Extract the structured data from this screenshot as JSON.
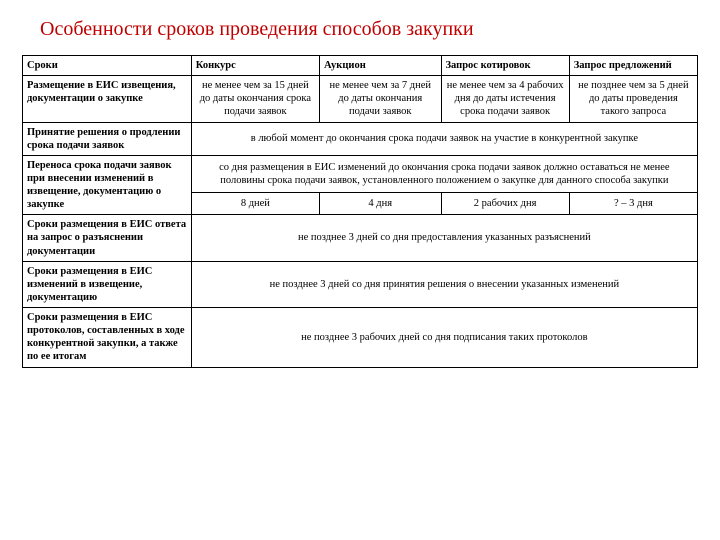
{
  "title": "Особенности сроков проведения способов закупки",
  "headers": {
    "c0": "Сроки",
    "c1": "Конкурс",
    "c2": "Аукцион",
    "c3": "Запрос котировок",
    "c4": "Запрос предложений"
  },
  "row1": {
    "label": "Размещение в ЕИС извещения, документации о закупке",
    "c1": "не менее чем за 15 дней до даты окончания срока подачи заявок",
    "c2": "не менее чем за 7 дней до даты окончания подачи заявок",
    "c3": "не менее чем за 4 рабочих дня до даты истечения срока подачи заявок",
    "c4": "не позднее чем за 5 дней до даты проведения такого запроса"
  },
  "row2": {
    "label": "Принятие решения о продлении срока подачи заявок",
    "span": "в любой момент до окончания срока подачи заявок на участие в конкурентной закупке"
  },
  "row3": {
    "label": "Переноса срока подачи заявок при внесении изменений в извещение, документацию о закупке",
    "span": "со дня размещения в ЕИС изменений до окончания срока подачи заявок должно оставаться не менее половины срока подачи заявок, установленного положением о закупке для данного способа закупки",
    "c1": "8 дней",
    "c2": "4 дня",
    "c3": "2 рабочих дня",
    "c4": "? – 3 дня"
  },
  "row4": {
    "label": "Сроки размещения в ЕИС ответа на запрос о разъяснении документации",
    "span": "не позднее 3 дней со дня предоставления указанных разъяснений"
  },
  "row5": {
    "label": "Сроки размещения в ЕИС изменений в извещение, документацию",
    "span": "не позднее 3 дней со дня принятия решения о внесении указанных изменений"
  },
  "row6": {
    "label": "Сроки размещения в ЕИС протоколов, составленных в ходе конкурентной закупки, а также по ее итогам",
    "span": "не позднее 3 рабочих дней со дня подписания таких протоколов"
  }
}
